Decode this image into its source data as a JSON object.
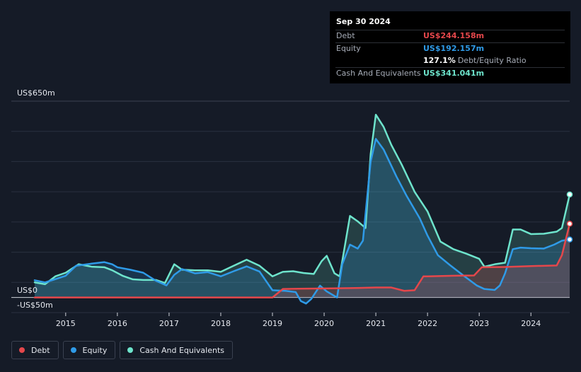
{
  "tooltip": {
    "date": "Sep 30 2024",
    "debt_label": "Debt",
    "debt_value": "US$244.158m",
    "equity_label": "Equity",
    "equity_value": "US$192.157m",
    "ratio_value": "127.1%",
    "ratio_label": "Debt/Equity Ratio",
    "cash_label": "Cash And Equivalents",
    "cash_value": "US$341.041m"
  },
  "legend": [
    {
      "label": "Debt",
      "color": "#e5474b"
    },
    {
      "label": "Equity",
      "color": "#2f9be8"
    },
    {
      "label": "Cash And Equivalents",
      "color": "#6ee4cc"
    }
  ],
  "colors": {
    "debt": "#e5474b",
    "equity": "#2f9be8",
    "cash": "#6ee4cc",
    "background": "#151b27"
  },
  "chart_data": {
    "type": "line",
    "y_top_label": "US$650m",
    "y_zero_label": "US$0",
    "y_bottom_label": "-US$50m",
    "ylim": [
      -50,
      650
    ],
    "xlim": [
      2014.4,
      2024.75
    ],
    "x_ticks": [
      "2015",
      "2016",
      "2017",
      "2018",
      "2019",
      "2020",
      "2021",
      "2022",
      "2023",
      "2024"
    ],
    "grid": true,
    "legend_position": "bottom-left",
    "series": [
      {
        "name": "Debt",
        "points": [
          [
            2014.4,
            0
          ],
          [
            2015.0,
            0
          ],
          [
            2016.0,
            0
          ],
          [
            2017.0,
            0
          ],
          [
            2018.0,
            0
          ],
          [
            2019.0,
            0
          ],
          [
            2019.2,
            28
          ],
          [
            2019.5,
            29
          ],
          [
            2020.0,
            30
          ],
          [
            2020.5,
            31
          ],
          [
            2021.0,
            33
          ],
          [
            2021.3,
            33
          ],
          [
            2021.55,
            22
          ],
          [
            2021.75,
            24
          ],
          [
            2021.92,
            70
          ],
          [
            2022.0,
            70
          ],
          [
            2022.5,
            72
          ],
          [
            2022.9,
            73
          ],
          [
            2023.05,
            100
          ],
          [
            2023.5,
            101
          ],
          [
            2024.0,
            104
          ],
          [
            2024.5,
            106
          ],
          [
            2024.6,
            140
          ],
          [
            2024.75,
            244
          ]
        ]
      },
      {
        "name": "Equity",
        "points": [
          [
            2014.4,
            57
          ],
          [
            2014.6,
            50
          ],
          [
            2014.75,
            58
          ],
          [
            2015.0,
            72
          ],
          [
            2015.2,
            105
          ],
          [
            2015.5,
            112
          ],
          [
            2015.75,
            117
          ],
          [
            2015.9,
            110
          ],
          [
            2016.0,
            100
          ],
          [
            2016.25,
            92
          ],
          [
            2016.5,
            82
          ],
          [
            2016.75,
            55
          ],
          [
            2016.95,
            40
          ],
          [
            2017.1,
            75
          ],
          [
            2017.25,
            94
          ],
          [
            2017.5,
            80
          ],
          [
            2017.75,
            84
          ],
          [
            2018.0,
            70
          ],
          [
            2018.25,
            87
          ],
          [
            2018.5,
            103
          ],
          [
            2018.75,
            86
          ],
          [
            2019.0,
            24
          ],
          [
            2019.25,
            22
          ],
          [
            2019.45,
            18
          ],
          [
            2019.55,
            -12
          ],
          [
            2019.65,
            -20
          ],
          [
            2019.75,
            -5
          ],
          [
            2019.92,
            39
          ],
          [
            2020.05,
            20
          ],
          [
            2020.25,
            0
          ],
          [
            2020.35,
            110
          ],
          [
            2020.5,
            175
          ],
          [
            2020.65,
            162
          ],
          [
            2020.75,
            188
          ],
          [
            2020.9,
            450
          ],
          [
            2021.0,
            525
          ],
          [
            2021.15,
            490
          ],
          [
            2021.4,
            400
          ],
          [
            2021.6,
            335
          ],
          [
            2021.85,
            262
          ],
          [
            2022.0,
            205
          ],
          [
            2022.2,
            140
          ],
          [
            2022.45,
            105
          ],
          [
            2022.7,
            72
          ],
          [
            2022.95,
            40
          ],
          [
            2023.1,
            28
          ],
          [
            2023.3,
            25
          ],
          [
            2023.4,
            40
          ],
          [
            2023.5,
            80
          ],
          [
            2023.65,
            160
          ],
          [
            2023.8,
            165
          ],
          [
            2024.0,
            163
          ],
          [
            2024.25,
            162
          ],
          [
            2024.45,
            175
          ],
          [
            2024.6,
            188
          ],
          [
            2024.75,
            192
          ]
        ]
      },
      {
        "name": "Cash And Equivalents",
        "points": [
          [
            2014.4,
            50
          ],
          [
            2014.6,
            44
          ],
          [
            2014.8,
            70
          ],
          [
            2015.0,
            82
          ],
          [
            2015.25,
            110
          ],
          [
            2015.5,
            102
          ],
          [
            2015.75,
            100
          ],
          [
            2015.9,
            90
          ],
          [
            2016.1,
            72
          ],
          [
            2016.3,
            60
          ],
          [
            2016.5,
            58
          ],
          [
            2016.75,
            58
          ],
          [
            2016.92,
            48
          ],
          [
            2017.1,
            110
          ],
          [
            2017.25,
            92
          ],
          [
            2017.5,
            90
          ],
          [
            2017.75,
            90
          ],
          [
            2018.0,
            85
          ],
          [
            2018.25,
            105
          ],
          [
            2018.5,
            125
          ],
          [
            2018.75,
            105
          ],
          [
            2019.0,
            70
          ],
          [
            2019.2,
            85
          ],
          [
            2019.4,
            87
          ],
          [
            2019.6,
            81
          ],
          [
            2019.8,
            78
          ],
          [
            2019.95,
            120
          ],
          [
            2020.05,
            138
          ],
          [
            2020.2,
            80
          ],
          [
            2020.3,
            70
          ],
          [
            2020.5,
            270
          ],
          [
            2020.65,
            252
          ],
          [
            2020.8,
            230
          ],
          [
            2020.9,
            475
          ],
          [
            2021.0,
            605
          ],
          [
            2021.15,
            565
          ],
          [
            2021.3,
            505
          ],
          [
            2021.5,
            440
          ],
          [
            2021.75,
            350
          ],
          [
            2022.0,
            285
          ],
          [
            2022.25,
            185
          ],
          [
            2022.5,
            160
          ],
          [
            2022.75,
            145
          ],
          [
            2023.0,
            128
          ],
          [
            2023.1,
            102
          ],
          [
            2023.3,
            110
          ],
          [
            2023.5,
            115
          ],
          [
            2023.65,
            225
          ],
          [
            2023.8,
            225
          ],
          [
            2024.0,
            210
          ],
          [
            2024.25,
            211
          ],
          [
            2024.5,
            218
          ],
          [
            2024.6,
            230
          ],
          [
            2024.75,
            341
          ]
        ]
      }
    ]
  }
}
